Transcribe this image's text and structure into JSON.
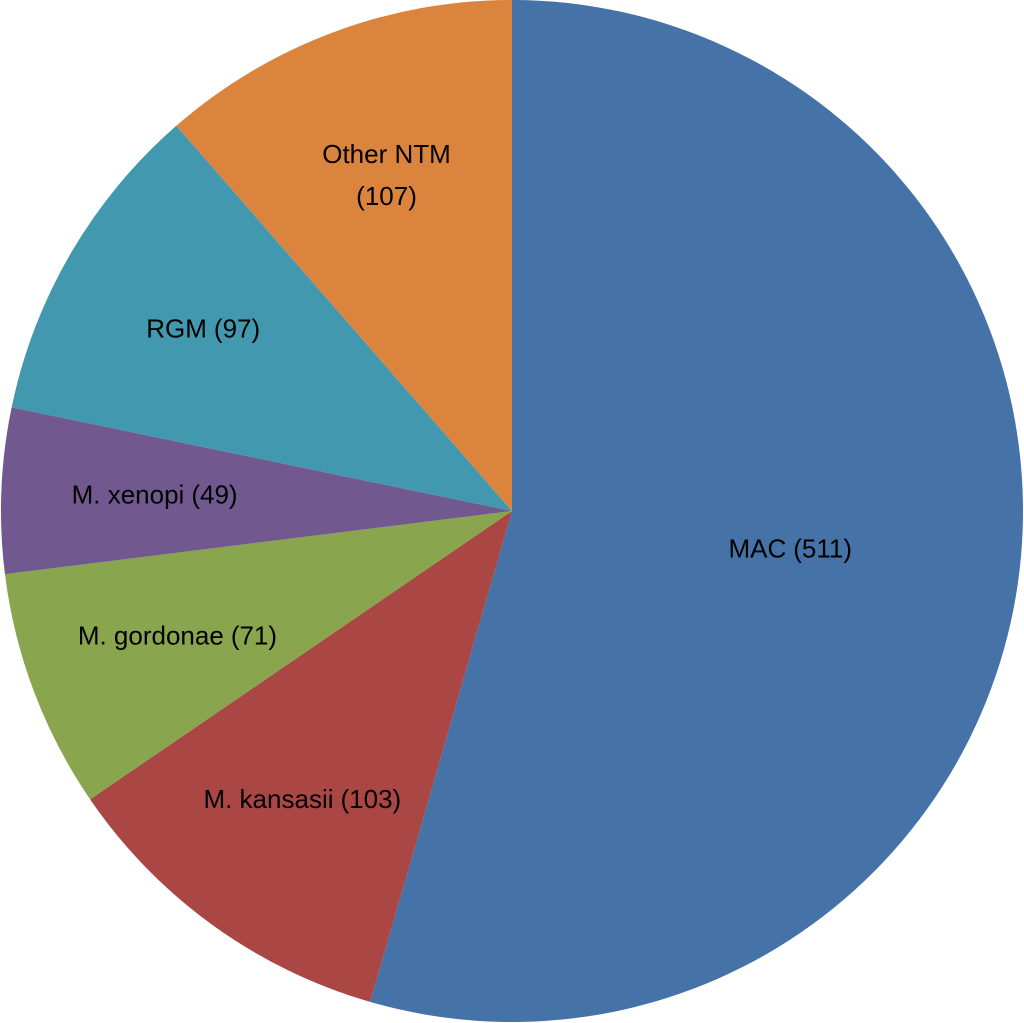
{
  "chart_data": {
    "type": "pie",
    "categories": [
      "MAC",
      "M. kansasii",
      "M. gordonae",
      "M. xenopi",
      "RGM",
      "Other NTM"
    ],
    "values": [
      511,
      103,
      71,
      49,
      97,
      107
    ],
    "value_labels": [
      "(511)",
      "(103)",
      "(71)",
      "(49)",
      "(97)",
      "(107)"
    ],
    "colors": [
      "#4572a7",
      "#aa4643",
      "#89a54e",
      "#71588f",
      "#4198af",
      "#db843d"
    ]
  }
}
